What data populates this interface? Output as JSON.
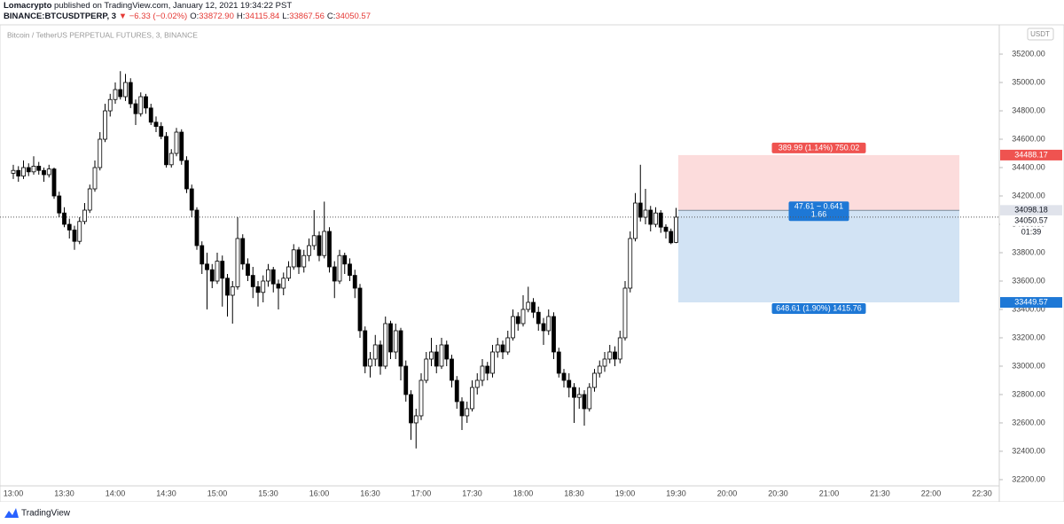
{
  "header": {
    "author": "Lomacrypto",
    "published": "published on TradingView.com, January 12, 2021 19:34:22 PST",
    "symbol": "BINANCE:BTCUSDTPERP, 3",
    "change": "▼ −6.33 (−0.02%)",
    "ohlc": [
      {
        "label": "O:",
        "value": "33872.90"
      },
      {
        "label": "H:",
        "value": "34115.84"
      },
      {
        "label": "L:",
        "value": "33867.56"
      },
      {
        "label": "C:",
        "value": "34050.57"
      }
    ]
  },
  "chart_data": {
    "type": "candlestick",
    "title": "Bitcoin / TetherUS PERPETUAL FUTURES, 3, BINANCE",
    "currency": "USDT",
    "up_color": "#ffffff",
    "down_color": "#000000",
    "wick_color": "#000000",
    "candles": [
      [
        34360,
        34420,
        34320,
        34380
      ],
      [
        34380,
        34410,
        34300,
        34340
      ],
      [
        34340,
        34450,
        34320,
        34400
      ],
      [
        34400,
        34430,
        34340,
        34370
      ],
      [
        34370,
        34480,
        34350,
        34410
      ],
      [
        34410,
        34440,
        34350,
        34380
      ],
      [
        34380,
        34400,
        34300,
        34350
      ],
      [
        34350,
        34420,
        34330,
        34390
      ],
      [
        34390,
        34400,
        34180,
        34200
      ],
      [
        34200,
        34230,
        34050,
        34080
      ],
      [
        34080,
        34120,
        33980,
        34000
      ],
      [
        34000,
        34040,
        33900,
        33960
      ],
      [
        33960,
        33990,
        33820,
        33880
      ],
      [
        33880,
        34050,
        33860,
        34020
      ],
      [
        34020,
        34150,
        34000,
        34100
      ],
      [
        34100,
        34280,
        34080,
        34250
      ],
      [
        34250,
        34450,
        34230,
        34400
      ],
      [
        34400,
        34650,
        34380,
        34600
      ],
      [
        34600,
        34850,
        34580,
        34800
      ],
      [
        34800,
        34920,
        34760,
        34880
      ],
      [
        34880,
        35000,
        34850,
        34950
      ],
      [
        34950,
        35080,
        34880,
        34900
      ],
      [
        34900,
        35060,
        34870,
        35000
      ],
      [
        35000,
        35030,
        34820,
        34850
      ],
      [
        34850,
        34880,
        34700,
        34780
      ],
      [
        34780,
        34930,
        34760,
        34900
      ],
      [
        34900,
        34920,
        34780,
        34820
      ],
      [
        34820,
        34850,
        34700,
        34720
      ],
      [
        34720,
        34760,
        34650,
        34690
      ],
      [
        34690,
        34720,
        34600,
        34620
      ],
      [
        34620,
        34650,
        34400,
        34420
      ],
      [
        34420,
        34530,
        34400,
        34500
      ],
      [
        34500,
        34680,
        34480,
        34650
      ],
      [
        34650,
        34670,
        34420,
        34450
      ],
      [
        34450,
        34480,
        34220,
        34250
      ],
      [
        34250,
        34280,
        34050,
        34100
      ],
      [
        34100,
        34120,
        33820,
        33850
      ],
      [
        33850,
        33880,
        33650,
        33720
      ],
      [
        33720,
        33800,
        33400,
        33680
      ],
      [
        33680,
        33720,
        33550,
        33600
      ],
      [
        33600,
        33800,
        33580,
        33740
      ],
      [
        33740,
        33780,
        33420,
        33620
      ],
      [
        33620,
        33650,
        33350,
        33500
      ],
      [
        33500,
        33600,
        33300,
        33560
      ],
      [
        33560,
        34050,
        33540,
        33900
      ],
      [
        33900,
        33930,
        33680,
        33720
      ],
      [
        33720,
        33760,
        33600,
        33640
      ],
      [
        33640,
        33700,
        33480,
        33560
      ],
      [
        33560,
        33600,
        33420,
        33520
      ],
      [
        33520,
        33640,
        33450,
        33600
      ],
      [
        33600,
        33720,
        33560,
        33680
      ],
      [
        33680,
        33700,
        33520,
        33580
      ],
      [
        33580,
        33610,
        33400,
        33550
      ],
      [
        33550,
        33660,
        33500,
        33620
      ],
      [
        33620,
        33740,
        33600,
        33700
      ],
      [
        33700,
        33860,
        33680,
        33820
      ],
      [
        33820,
        33840,
        33650,
        33700
      ],
      [
        33700,
        33820,
        33660,
        33780
      ],
      [
        33780,
        33900,
        33740,
        33850
      ],
      [
        33850,
        34100,
        33820,
        33920
      ],
      [
        33920,
        33950,
        33740,
        33780
      ],
      [
        33780,
        34160,
        33760,
        33950
      ],
      [
        33950,
        33980,
        33660,
        33700
      ],
      [
        33700,
        33740,
        33480,
        33600
      ],
      [
        33600,
        33820,
        33580,
        33780
      ],
      [
        33780,
        33800,
        33650,
        33720
      ],
      [
        33720,
        33760,
        33600,
        33640
      ],
      [
        33640,
        33680,
        33480,
        33550
      ],
      [
        33550,
        33580,
        33200,
        33250
      ],
      [
        33250,
        33280,
        32950,
        33000
      ],
      [
        33000,
        33100,
        32920,
        33050
      ],
      [
        33050,
        33220,
        33000,
        33150
      ],
      [
        33150,
        33180,
        32940,
        33000
      ],
      [
        33000,
        33350,
        32980,
        33300
      ],
      [
        33300,
        33320,
        33050,
        33100
      ],
      [
        33100,
        33300,
        33050,
        33250
      ],
      [
        33250,
        33270,
        32900,
        33000
      ],
      [
        33000,
        33040,
        32750,
        32800
      ],
      [
        32800,
        32830,
        32480,
        32600
      ],
      [
        32600,
        32700,
        32420,
        32650
      ],
      [
        32650,
        32950,
        32620,
        32900
      ],
      [
        32900,
        33100,
        32880,
        33050
      ],
      [
        33050,
        33200,
        33000,
        33100
      ],
      [
        33100,
        33150,
        32950,
        33000
      ],
      [
        33000,
        33200,
        32980,
        33150
      ],
      [
        33150,
        33180,
        33000,
        33050
      ],
      [
        33050,
        33080,
        32850,
        32900
      ],
      [
        32900,
        32930,
        32700,
        32750
      ],
      [
        32750,
        32780,
        32550,
        32650
      ],
      [
        32650,
        32750,
        32600,
        32700
      ],
      [
        32700,
        32900,
        32680,
        32850
      ],
      [
        32850,
        32950,
        32800,
        32900
      ],
      [
        32900,
        33050,
        32860,
        33000
      ],
      [
        33000,
        33030,
        32900,
        32950
      ],
      [
        32950,
        33150,
        32920,
        33100
      ],
      [
        33100,
        33200,
        33060,
        33150
      ],
      [
        33150,
        33180,
        33050,
        33100
      ],
      [
        33100,
        33250,
        33080,
        33200
      ],
      [
        33200,
        33400,
        33180,
        33350
      ],
      [
        33350,
        33380,
        33250,
        33300
      ],
      [
        33300,
        33500,
        33280,
        33400
      ],
      [
        33400,
        33560,
        33380,
        33450
      ],
      [
        33450,
        33480,
        33340,
        33380
      ],
      [
        33380,
        33420,
        33250,
        33300
      ],
      [
        33300,
        33340,
        33150,
        33250
      ],
      [
        33250,
        33400,
        33220,
        33350
      ],
      [
        33350,
        33380,
        33050,
        33100
      ],
      [
        33100,
        33130,
        32920,
        32950
      ],
      [
        32950,
        32980,
        32850,
        32900
      ],
      [
        32900,
        32950,
        32780,
        32850
      ],
      [
        32850,
        32880,
        32600,
        32780
      ],
      [
        32780,
        32850,
        32700,
        32800
      ],
      [
        32800,
        32830,
        32580,
        32700
      ],
      [
        32700,
        32880,
        32680,
        32850
      ],
      [
        32850,
        32980,
        32820,
        32950
      ],
      [
        32950,
        33040,
        32920,
        33000
      ],
      [
        33000,
        33100,
        32960,
        33050
      ],
      [
        33050,
        33150,
        33020,
        33100
      ],
      [
        33100,
        33140,
        33000,
        33050
      ],
      [
        33050,
        33250,
        33020,
        33200
      ],
      [
        33200,
        33600,
        33180,
        33550
      ],
      [
        33550,
        33950,
        33520,
        33900
      ],
      [
        33900,
        34220,
        33880,
        34150
      ],
      [
        34150,
        34420,
        34020,
        34050
      ],
      [
        34050,
        34250,
        34000,
        34100
      ],
      [
        34100,
        34130,
        33950,
        34000
      ],
      [
        34000,
        34120,
        33980,
        34080
      ],
      [
        34080,
        34100,
        33940,
        33980
      ],
      [
        33980,
        34000,
        33900,
        33950
      ],
      [
        33950,
        33970,
        33860,
        33870
      ],
      [
        33872.9,
        34115.84,
        33867.56,
        34050.57
      ]
    ],
    "xticks": [
      "13:00",
      "13:30",
      "14:00",
      "14:30",
      "15:00",
      "15:30",
      "16:00",
      "16:30",
      "17:00",
      "17:30",
      "18:00",
      "18:30",
      "19:00",
      "19:30",
      "20:00",
      "20:30",
      "21:00",
      "21:30",
      "22:00",
      "22:30"
    ],
    "ylim": [
      32156,
      35394
    ],
    "yticks": [
      {
        "value": 32200,
        "label": "32200.00"
      },
      {
        "value": 32400,
        "label": "32400.00"
      },
      {
        "value": 32600,
        "label": "32600.00"
      },
      {
        "value": 32800,
        "label": "32800.00"
      },
      {
        "value": 33000,
        "label": "33000.00"
      },
      {
        "value": 33200,
        "label": "33200.00"
      },
      {
        "value": 33400,
        "label": "33400.00"
      },
      {
        "value": 33600,
        "label": "33600.00"
      },
      {
        "value": 33800,
        "label": "33800.00"
      },
      {
        "value": 34000,
        "label": "34000.00"
      },
      {
        "value": 34200,
        "label": "34200.00"
      },
      {
        "value": 34400,
        "label": "34400.00"
      },
      {
        "value": 34600,
        "label": "34600.00"
      },
      {
        "value": 34800,
        "label": "34800.00"
      },
      {
        "value": 35000,
        "label": "35000.00"
      },
      {
        "value": 35200,
        "label": "35200.00"
      }
    ],
    "last_price": {
      "value": 34050.57,
      "label": "34050.57"
    },
    "countdown": "01:39",
    "position": {
      "target": {
        "value": 34488.17,
        "label": "34488.17"
      },
      "entry": {
        "value": 34098.18,
        "label": "34098.18"
      },
      "stop": {
        "value": 33449.57,
        "label": "33449.57"
      },
      "target_text": "389.99 (1.14%) 750.02",
      "ratio_text": "47.61 ~ 0.641",
      "rr_text": "1.66",
      "stop_text": "648.61 (1.90%) 1415.76",
      "profit_color": "#fcdcdc",
      "loss_color": "#d2e3f4",
      "profit_label_color": "#ef5350",
      "loss_label_color": "#1e78d6"
    }
  },
  "footer": {
    "brand": "TradingView"
  }
}
